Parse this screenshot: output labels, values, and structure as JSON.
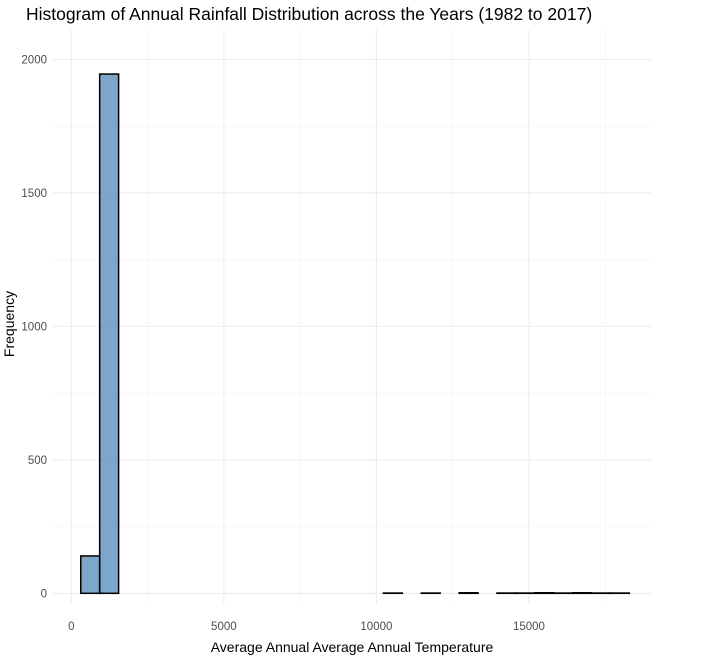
{
  "chart_data": {
    "type": "bar",
    "title": "Histogram of Annual Rainfall Distribution across the Years (1982 to 2017)",
    "xlabel": "Average Annual Average Annual Temperature",
    "ylabel": "Frequency",
    "xlim": [
      -600,
      19000
    ],
    "ylim": [
      -40,
      2110
    ],
    "x_ticks": [
      0,
      5000,
      10000,
      15000
    ],
    "y_ticks": [
      0,
      500,
      1000,
      1500,
      2000
    ],
    "grid": true,
    "bin_width": 620,
    "bins": [
      {
        "x0": 310,
        "x1": 930,
        "count": 140
      },
      {
        "x0": 930,
        "x1": 1550,
        "count": 1945
      },
      {
        "x0": 1550,
        "x1": 2170,
        "count": 0
      },
      {
        "x0": 2170,
        "x1": 2790,
        "count": 0
      },
      {
        "x0": 2790,
        "x1": 3410,
        "count": 0
      },
      {
        "x0": 3410,
        "x1": 4030,
        "count": 0
      },
      {
        "x0": 4030,
        "x1": 4650,
        "count": 0
      },
      {
        "x0": 4650,
        "x1": 5270,
        "count": 0
      },
      {
        "x0": 5270,
        "x1": 5890,
        "count": 0
      },
      {
        "x0": 5890,
        "x1": 6510,
        "count": 0
      },
      {
        "x0": 6510,
        "x1": 7130,
        "count": 0
      },
      {
        "x0": 7130,
        "x1": 7750,
        "count": 0
      },
      {
        "x0": 7750,
        "x1": 8370,
        "count": 0
      },
      {
        "x0": 8370,
        "x1": 8990,
        "count": 0
      },
      {
        "x0": 8990,
        "x1": 9610,
        "count": 0
      },
      {
        "x0": 9610,
        "x1": 10230,
        "count": 0
      },
      {
        "x0": 10230,
        "x1": 10850,
        "count": 1
      },
      {
        "x0": 10850,
        "x1": 11470,
        "count": 0
      },
      {
        "x0": 11470,
        "x1": 12090,
        "count": 1
      },
      {
        "x0": 12090,
        "x1": 12710,
        "count": 0
      },
      {
        "x0": 12710,
        "x1": 13330,
        "count": 2
      },
      {
        "x0": 13330,
        "x1": 13950,
        "count": 0
      },
      {
        "x0": 13950,
        "x1": 14570,
        "count": 1
      },
      {
        "x0": 14570,
        "x1": 15190,
        "count": 1
      },
      {
        "x0": 15190,
        "x1": 15810,
        "count": 2
      },
      {
        "x0": 15810,
        "x1": 16430,
        "count": 1
      },
      {
        "x0": 16430,
        "x1": 17050,
        "count": 2
      },
      {
        "x0": 17050,
        "x1": 17670,
        "count": 1
      },
      {
        "x0": 17670,
        "x1": 18290,
        "count": 1
      }
    ],
    "bar_fill": "#4682b4",
    "bar_stroke": "#000000"
  }
}
